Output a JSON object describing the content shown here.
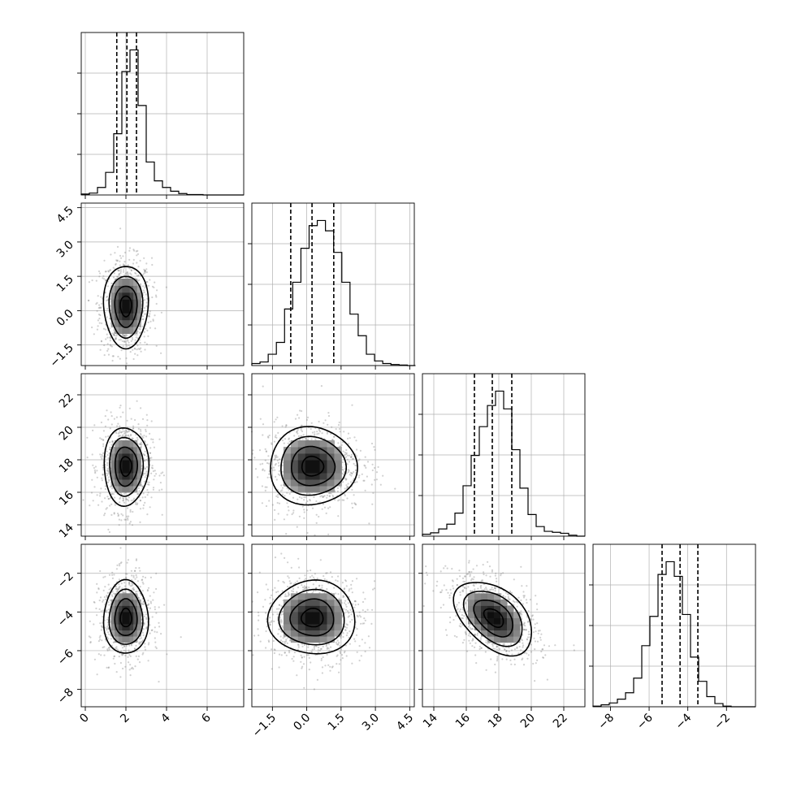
{
  "chart_data": {
    "type": "corner",
    "parameters": [
      {
        "index": 0,
        "range": [
          -0.2,
          7.8
        ],
        "ticks": [
          "0",
          "2",
          "4",
          "6"
        ],
        "tick_values": [
          0,
          2,
          4,
          6
        ],
        "histogram": {
          "edges_start": -0.2,
          "bin_width": 0.4,
          "counts": [
            2,
            4,
            16,
            48,
            130,
            262,
            308,
            190,
            70,
            30,
            16,
            8,
            3,
            1,
            1,
            0,
            0,
            0,
            0,
            0
          ]
        },
        "quantiles": [
          1.55,
          2.05,
          2.52
        ]
      },
      {
        "index": 1,
        "range": [
          -2.4,
          4.7
        ],
        "ticks": [
          "−1.5",
          "0.0",
          "1.5",
          "3.0",
          "4.5"
        ],
        "tick_values": [
          -1.5,
          0,
          1.5,
          3,
          4.5
        ],
        "histogram": {
          "edges_start": -2.4,
          "bin_width": 0.3575,
          "counts": [
            4,
            7,
            22,
            45,
            110,
            162,
            228,
            272,
            282,
            262,
            220,
            162,
            100,
            58,
            22,
            9,
            4,
            2,
            1,
            0
          ]
        },
        "quantiles": [
          -0.7,
          0.23,
          1.18
        ]
      },
      {
        "index": 2,
        "range": [
          13.3,
          23.3
        ],
        "ticks": [
          "14",
          "16",
          "18",
          "20",
          "22"
        ],
        "tick_values": [
          14,
          16,
          18,
          20,
          22
        ],
        "histogram": {
          "edges_start": 13.3,
          "bin_width": 0.5,
          "counts": [
            4,
            7,
            15,
            25,
            48,
            105,
            168,
            228,
            272,
            302,
            265,
            180,
            100,
            45,
            20,
            10,
            8,
            6,
            2,
            0
          ]
        },
        "quantiles": [
          16.5,
          17.6,
          18.8
        ]
      },
      {
        "index": 3,
        "range": [
          -8.9,
          -0.5
        ],
        "ticks": [
          "−8",
          "−6",
          "−4",
          "−2"
        ],
        "tick_values": [
          -8,
          -6,
          -4,
          -2
        ],
        "histogram": {
          "edges_start": -8.9,
          "bin_width": 0.42,
          "counts": [
            1,
            3,
            6,
            12,
            22,
            45,
            96,
            142,
            208,
            228,
            205,
            145,
            78,
            40,
            16,
            5,
            1,
            0,
            0,
            0
          ]
        },
        "quantiles": [
          -5.33,
          -4.4,
          -3.48
        ]
      }
    ],
    "pairs": [
      {
        "x": 0,
        "y": 1,
        "center": [
          2.0,
          0.2
        ],
        "sigma": [
          0.55,
          0.9
        ],
        "rho": 0.0
      },
      {
        "x": 0,
        "y": 2,
        "center": [
          2.0,
          17.6
        ],
        "sigma": [
          0.55,
          1.2
        ],
        "rho": 0.0
      },
      {
        "x": 1,
        "y": 2,
        "center": [
          0.25,
          17.6
        ],
        "sigma": [
          0.95,
          1.2
        ],
        "rho": 0.0
      },
      {
        "x": 0,
        "y": 3,
        "center": [
          2.0,
          -4.3
        ],
        "sigma": [
          0.55,
          0.95
        ],
        "rho": 0.0
      },
      {
        "x": 1,
        "y": 3,
        "center": [
          0.25,
          -4.3
        ],
        "sigma": [
          0.95,
          0.95
        ],
        "rho": 0.0
      },
      {
        "x": 2,
        "y": 3,
        "center": [
          17.7,
          -4.3
        ],
        "sigma": [
          1.2,
          0.95
        ],
        "rho": -0.45
      }
    ],
    "contour_levels_sigma": [
      0.5,
      1.0,
      1.5,
      2.0
    ],
    "grid": true,
    "legend": "none"
  }
}
